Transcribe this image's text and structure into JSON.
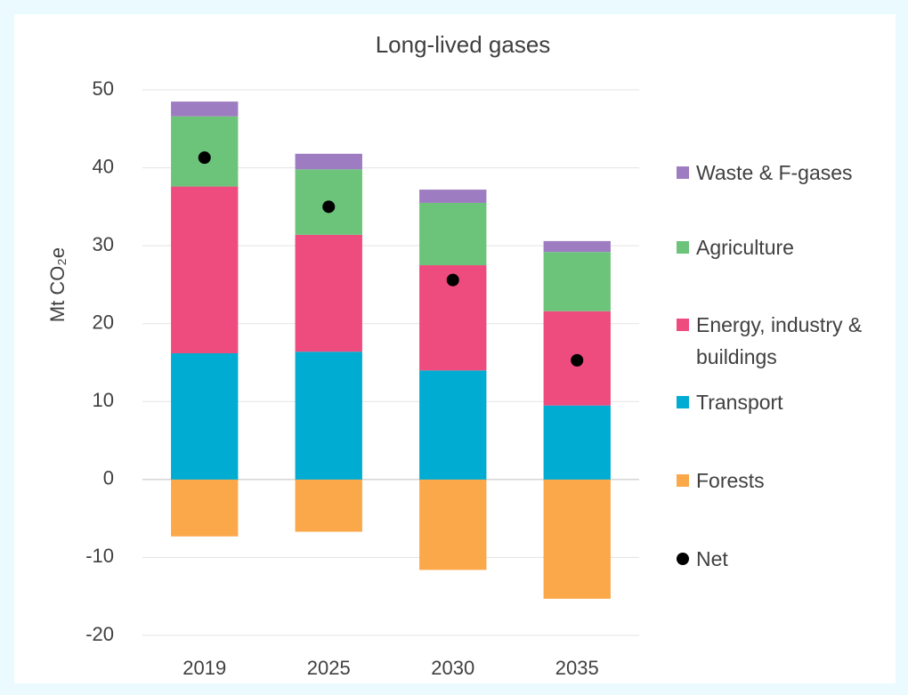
{
  "chart_data": {
    "type": "bar",
    "stacked": true,
    "title": "Long-lived gases",
    "y_label": "Mt CO₂e",
    "categories": [
      "2019",
      "2025",
      "2030",
      "2035"
    ],
    "series": [
      {
        "name": "Waste & F-gases",
        "color": "#9e7cc1",
        "values": [
          1.9,
          2.0,
          1.7,
          1.4
        ]
      },
      {
        "name": "Agriculture",
        "color": "#6cc47a",
        "values": [
          9.0,
          8.4,
          8.0,
          7.6
        ]
      },
      {
        "name": "Energy, industry & buildings",
        "color": "#ee4b7e",
        "values": [
          21.4,
          15.0,
          13.5,
          12.1
        ]
      },
      {
        "name": "Transport",
        "color": "#00acd1",
        "values": [
          16.2,
          16.4,
          14.0,
          9.5
        ]
      },
      {
        "name": "Forests",
        "color": "#fba84a",
        "values": [
          -7.3,
          -6.7,
          -11.6,
          -15.3
        ]
      },
      {
        "name": "Net",
        "color": "#000000",
        "type": "scatter",
        "values": [
          41.3,
          35.0,
          25.6,
          15.3
        ]
      }
    ],
    "ylim": [
      -20,
      50
    ],
    "yticks": [
      -20,
      -10,
      0,
      10,
      20,
      30,
      40,
      50
    ],
    "grid": true,
    "legend": "right"
  }
}
